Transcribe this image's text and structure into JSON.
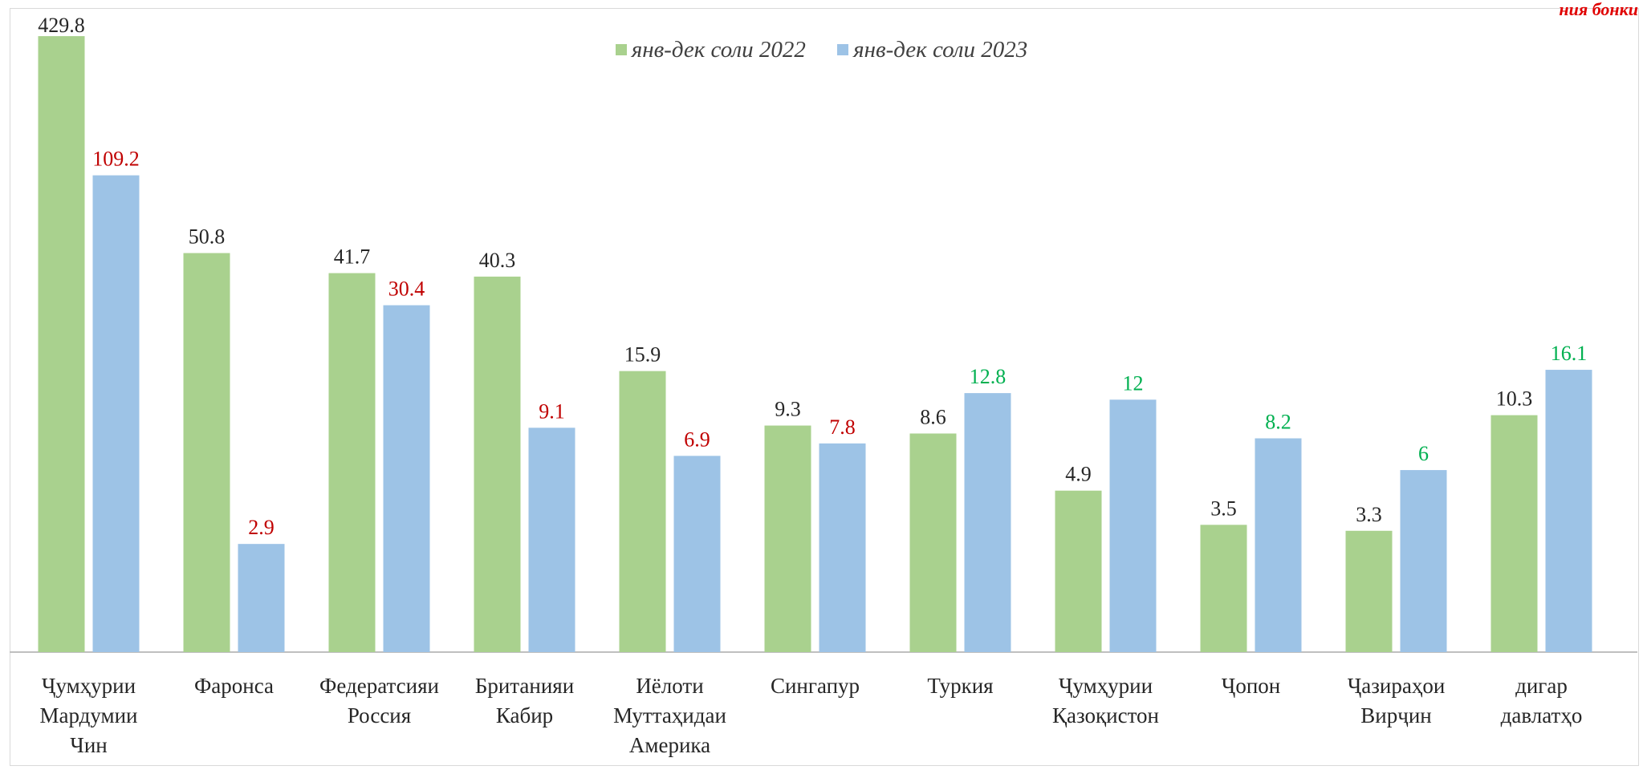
{
  "corner_note": "ния бонки",
  "colors": {
    "series_2022": "#a9d18e",
    "series_2023": "#9dc3e6",
    "label_default": "#262626",
    "label_decrease": "#c00000",
    "label_increase": "#00b050",
    "category_text": "#262626",
    "axis": "#bfbfbf"
  },
  "chart_data": {
    "type": "bar",
    "categories": [
      [
        "Ҷумҳурии",
        "Мардумии",
        "Чин"
      ],
      [
        "Фаронса"
      ],
      [
        "Федератсияи",
        "Россия"
      ],
      [
        "Британияи",
        "Кабир"
      ],
      [
        "Иёлоти",
        "Муттаҳидаи",
        "Америка"
      ],
      [
        "Сингапур"
      ],
      [
        "Туркия"
      ],
      [
        "Ҷумҳурии",
        "Қазоқистон"
      ],
      [
        "Ҷопон"
      ],
      [
        "Ҷазираҳои",
        "Вирҷин"
      ],
      [
        "дигар",
        "давлатҳо"
      ]
    ],
    "series": [
      {
        "name": "янв-дек соли 2022",
        "values": [
          429.8,
          50.8,
          41.7,
          40.3,
          15.9,
          9.3,
          8.6,
          4.9,
          3.5,
          3.3,
          10.3
        ],
        "labels": [
          "429.8",
          "50.8",
          "41.7",
          "40.3",
          "15.9",
          "9.3",
          "8.6",
          "4.9",
          "3.5",
          "3.3",
          "10.3"
        ]
      },
      {
        "name": "янв-дек соли 2023",
        "values": [
          109.2,
          2.9,
          30.4,
          9.1,
          6.9,
          7.8,
          12.8,
          12,
          8.2,
          6,
          16.1
        ],
        "labels": [
          "109.2",
          "2.9",
          "30.4",
          "9.1",
          "6.9",
          "7.8",
          "12.8",
          "12",
          "8.2",
          "6",
          "16.1"
        ],
        "label_trend": [
          "decrease",
          "decrease",
          "decrease",
          "decrease",
          "decrease",
          "decrease",
          "increase",
          "increase",
          "increase",
          "increase",
          "increase"
        ]
      }
    ],
    "y_scale": "log",
    "ylim": [
      1,
      430
    ],
    "grid": false,
    "legend_position": "top-center",
    "title": "",
    "xlabel": "",
    "ylabel": ""
  }
}
